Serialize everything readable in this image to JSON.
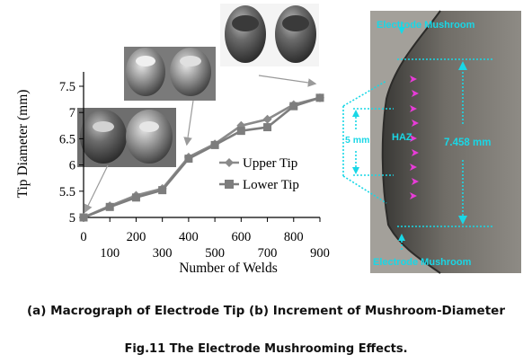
{
  "chart_data": {
    "type": "line",
    "xlabel": "Number of Welds",
    "ylabel": "Tip Diameter (mm)",
    "xlim": [
      0,
      900
    ],
    "ylim": [
      5,
      7.5
    ],
    "x_ticks": [
      "0",
      "100",
      "200",
      "300",
      "400",
      "500",
      "600",
      "700",
      "800",
      "900"
    ],
    "y_ticks": [
      "5",
      "5.5",
      "6",
      "6.5",
      "7",
      "7.5"
    ],
    "legend_position": "right",
    "series": [
      {
        "name": "Upper Tip",
        "marker": "diamond",
        "color": "#8a8a8a",
        "x": [
          0,
          100,
          200,
          300,
          400,
          500,
          600,
          700,
          800,
          900
        ],
        "y": [
          5.0,
          5.22,
          5.42,
          5.55,
          6.15,
          6.4,
          6.75,
          6.87,
          7.15,
          7.28
        ]
      },
      {
        "name": "Lower Tip",
        "marker": "square",
        "color": "#7d7d7d",
        "x": [
          0,
          100,
          200,
          300,
          400,
          500,
          600,
          700,
          800,
          900
        ],
        "y": [
          5.0,
          5.2,
          5.38,
          5.52,
          6.12,
          6.38,
          6.65,
          6.72,
          7.12,
          7.28
        ]
      }
    ]
  },
  "micrograph": {
    "label_top": "Electrode Mushroom",
    "label_bottom": "Electrode Mushroom",
    "haz_label": "HAZ",
    "depth_label": "5 mm",
    "diameter_label": "7.458 mm"
  },
  "captions": {
    "subfigures": "(a) Macrograph of Electrode Tip (b) Increment of Mushroom-Diameter",
    "figure": "Fig.11 The Electrode Mushrooming Effects."
  },
  "colors": {
    "annotation": "#19d7e6",
    "arrow": "#e83cd8",
    "axis": "#000000"
  }
}
